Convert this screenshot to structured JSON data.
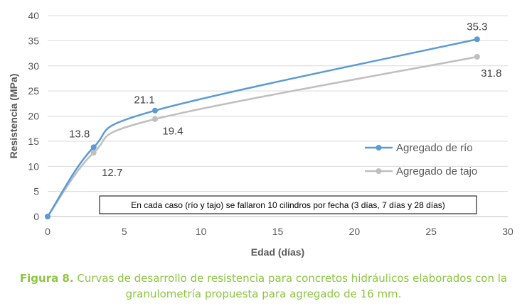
{
  "chart_data": {
    "type": "line",
    "title": "",
    "xlabel": "Edad (días)",
    "ylabel": "Resistencia (MPa)",
    "xlim": [
      0,
      30
    ],
    "ylim": [
      0,
      40
    ],
    "xticks": [
      0,
      5,
      10,
      15,
      20,
      25,
      30
    ],
    "yticks": [
      0,
      5,
      10,
      15,
      20,
      25,
      30,
      35,
      40
    ],
    "grid": "horizontal",
    "legend_position": "right",
    "series": [
      {
        "name": "Agregado de río",
        "color": "#5b9bd5",
        "x": [
          0,
          3,
          7,
          28
        ],
        "y": [
          0,
          13.8,
          21.1,
          35.3
        ],
        "labels": [
          "",
          "13.8",
          "21.1",
          "35.3"
        ]
      },
      {
        "name": "Agregado de tajo",
        "color": "#bfbfbf",
        "x": [
          0,
          3,
          7,
          28
        ],
        "y": [
          0,
          12.7,
          19.4,
          31.8
        ],
        "labels": [
          "",
          "12.7",
          "19.4",
          "31.8"
        ]
      }
    ],
    "annotation": "En cada caso (río y tajo) se fallaron 10 cilindros por fecha (3 días, 7 días y 28 días)"
  },
  "caption": {
    "label": "Figura 8.",
    "line1": " Curvas de desarrollo de resistencia para concretos hidráulicos elaborados con la",
    "line2": "granulometría propuesta para agregado de 16 mm."
  }
}
